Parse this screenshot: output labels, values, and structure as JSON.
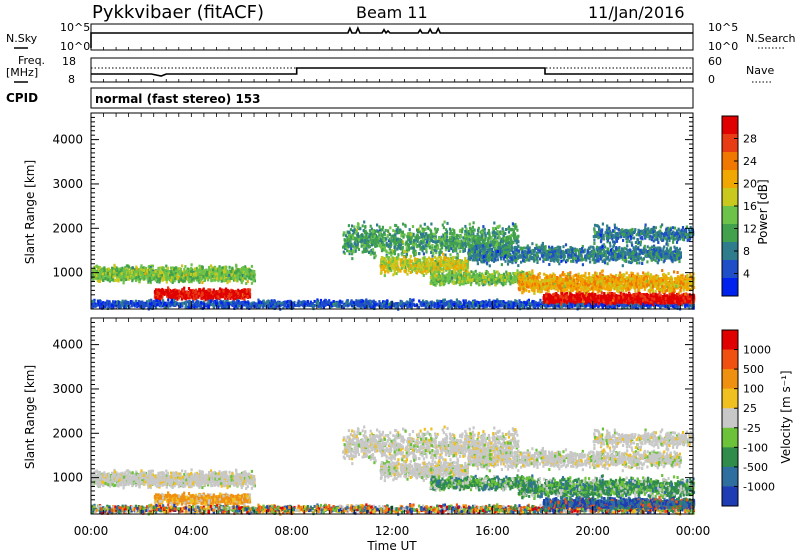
{
  "header": {
    "station": "Pykkvibaer (fitACF)",
    "beam": "Beam 11",
    "date": "11/Jan/2016"
  },
  "nsky_panel": {
    "left_label": "N.Sky",
    "right_label": "N.Search",
    "left_ticks": [
      "10^5",
      "10^0"
    ],
    "right_ticks": [
      "10^5",
      "10^0"
    ]
  },
  "freq_panel": {
    "left_label_1": "Freq.",
    "left_label_2": "[MHz]",
    "right_label": "Nave",
    "left_ticks": [
      "18",
      "8"
    ],
    "right_ticks": [
      "60",
      "0"
    ]
  },
  "cpid_panel": {
    "label": "CPID",
    "text": "normal (fast stereo) 153"
  },
  "chart_data": [
    {
      "type": "heatmap",
      "ylabel": "Slant Range [km]",
      "yticks": [
        "4000",
        "3000",
        "2000",
        "1000"
      ],
      "ytick_values": [
        4000,
        3000,
        2000,
        1000
      ],
      "ylim": [
        180,
        4600
      ],
      "xlim": [
        "00:00",
        "24:00"
      ],
      "colorbar": {
        "label": "Power [dB]",
        "ticks": [
          "28",
          "24",
          "20",
          "16",
          "12",
          "8",
          "4"
        ],
        "tick_values": [
          28,
          24,
          20,
          16,
          12,
          8,
          4
        ],
        "range": [
          0,
          32
        ],
        "colors": [
          "#0022ee",
          "#1e4fc8",
          "#2f7c8c",
          "#41a14d",
          "#6dc34a",
          "#c8c81e",
          "#f0a800",
          "#f07800",
          "#e83c14",
          "#e00000"
        ]
      }
    },
    {
      "type": "heatmap",
      "ylabel": "Slant Range [km]",
      "yticks": [
        "4000",
        "3000",
        "2000",
        "1000"
      ],
      "ytick_values": [
        4000,
        3000,
        2000,
        1000
      ],
      "ylim": [
        180,
        4600
      ],
      "xlabel": "Time UT",
      "xticks": [
        "00:00",
        "04:00",
        "08:00",
        "12:00",
        "16:00",
        "20:00",
        "00:00"
      ],
      "xlim": [
        "00:00",
        "24:00"
      ],
      "colorbar": {
        "label": "Velocity [m s⁻¹]",
        "ticks": [
          "1000",
          "500",
          "100",
          "25",
          "-25",
          "-100",
          "-500",
          "-1000"
        ],
        "colors": [
          "#1e3cb4",
          "#2f6fa0",
          "#2f8c4a",
          "#6cc33a",
          "#c8c8c8",
          "#f0c020",
          "#f09010",
          "#f05010",
          "#e00000"
        ]
      }
    }
  ]
}
